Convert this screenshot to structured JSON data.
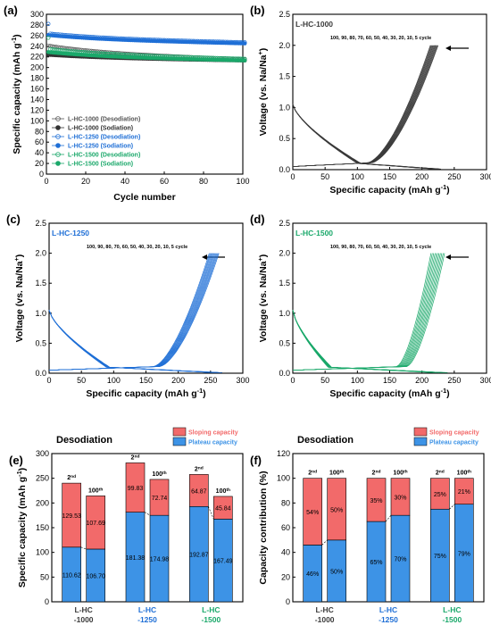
{
  "colors": {
    "lhc1000": "#3a3a3a",
    "lhc1250": "#1f6fd6",
    "lhc1500": "#1aa86a",
    "sloping": "#f26a6a",
    "plateau": "#3d93e6"
  },
  "charts": [
    {
      "panel": "(a)",
      "type": "scatter",
      "xlabel": "Cycle number",
      "ylabel": "Specific capacity (mAh g-1)",
      "xlim": [
        0,
        100
      ],
      "ylim": [
        0,
        300
      ],
      "xticks": [
        0,
        20,
        40,
        60,
        80,
        100
      ],
      "yticks": [
        0,
        20,
        40,
        60,
        80,
        100,
        120,
        140,
        160,
        180,
        200,
        220,
        240,
        260,
        280,
        300
      ],
      "series": [
        {
          "name": "L-HC-1000 (Desodiation)",
          "color": "#555555",
          "fill": "none",
          "start": 241,
          "end": 215,
          "first": 241
        },
        {
          "name": "L-HC-1000 (Sodiation)",
          "color": "#333333",
          "fill": "#333333",
          "start": 224,
          "end": 213,
          "first": 224
        },
        {
          "name": "L-HC-1250 (Desodiation)",
          "color": "#1f6fd6",
          "fill": "none",
          "start": 264,
          "end": 247,
          "first": 282
        },
        {
          "name": "L-HC-1250 (Sodiation)",
          "color": "#1f6fd6",
          "fill": "#1f6fd6",
          "start": 261,
          "end": 245,
          "first": 261
        },
        {
          "name": "L-HC-1500 (Desodiation)",
          "color": "#1aa86a",
          "fill": "none",
          "start": 235,
          "end": 216,
          "first": 256
        },
        {
          "name": "L-HC-1500 (Sodiation)",
          "color": "#1aa86a",
          "fill": "#1aa86a",
          "start": 229,
          "end": 213,
          "first": 229
        }
      ]
    },
    {
      "panel": "(b)",
      "type": "line",
      "sample": "L-HC-1000",
      "color": "#3a3a3a",
      "xlabel": "Specific capacity (mAh g-1)",
      "ylabel": "Voltage (vs. Na/Na+)",
      "xlim": [
        0,
        300
      ],
      "ylim": [
        0,
        2.5
      ],
      "xticks": [
        0,
        50,
        100,
        150,
        200,
        250,
        300
      ],
      "yticks": [
        0.0,
        0.5,
        1.0,
        1.5,
        2.0,
        2.5
      ],
      "cycles_note": "100, 90, 80, 70, 60, 50, 40, 30, 20, 10, 5 cycle",
      "cap_max": 225,
      "cap_min": 213,
      "slope_frac": 0.46
    },
    {
      "panel": "(c)",
      "type": "line",
      "sample": "L-HC-1250",
      "color": "#1f6fd6",
      "xlabel": "Specific capacity (mAh g-1)",
      "ylabel": "Voltage (vs. Na/Na+)",
      "xlim": [
        0,
        300
      ],
      "ylim": [
        0,
        2.5
      ],
      "xticks": [
        0,
        50,
        100,
        150,
        200,
        250,
        300
      ],
      "yticks": [
        0.0,
        0.5,
        1.0,
        1.5,
        2.0,
        2.5
      ],
      "cycles_note": "100, 90, 80, 70, 60, 50, 40, 30, 20, 10, 5 cycle",
      "cap_max": 263,
      "cap_min": 248,
      "slope_frac": 0.35
    },
    {
      "panel": "(d)",
      "type": "line",
      "sample": "L-HC-1500",
      "color": "#1aa86a",
      "xlabel": "Specific capacity (mAh g-1)",
      "ylabel": "Voltage (vs. Na/Na+)",
      "xlim": [
        0,
        300
      ],
      "ylim": [
        0,
        2.5
      ],
      "xticks": [
        0,
        50,
        100,
        150,
        200,
        250,
        300
      ],
      "yticks": [
        0.0,
        0.5,
        1.0,
        1.5,
        2.0,
        2.5
      ],
      "cycles_note": "100, 90, 80, 70, 60, 50, 40, 30, 20, 10, 5 cycle",
      "cap_max": 235,
      "cap_min": 214,
      "slope_frac": 0.25
    },
    {
      "panel": "(e)",
      "type": "bar",
      "title": "Desodiation",
      "ylabel": "Specific capacity (mAh g-1)",
      "ylim": [
        0,
        300
      ],
      "yticks": [
        0,
        50,
        100,
        150,
        200,
        250,
        300
      ],
      "legend": [
        "Sloping capacity",
        "Plateau capacity"
      ],
      "groups": [
        {
          "label": [
            "L-HC",
            "-1000"
          ],
          "color": "#3a3a3a",
          "bars": [
            {
              "cycle": "2",
              "sup": "nd",
              "plateau": 110.62,
              "sloping": 129.53,
              "plateau_label": "110.62",
              "sloping_label": "129.53"
            },
            {
              "cycle": "100",
              "sup": "th",
              "plateau": 106.7,
              "sloping": 107.69,
              "plateau_label": "106.70",
              "sloping_label": "107.69"
            }
          ]
        },
        {
          "label": [
            "L-HC",
            "-1250"
          ],
          "color": "#1f6fd6",
          "bars": [
            {
              "cycle": "2",
              "sup": "nd",
              "plateau": 181.38,
              "sloping": 99.83,
              "plateau_label": "181.38",
              "sloping_label": "99.83"
            },
            {
              "cycle": "100",
              "sup": "th",
              "plateau": 174.98,
              "sloping": 72.74,
              "plateau_label": "174.98",
              "sloping_label": "72.74"
            }
          ]
        },
        {
          "label": [
            "L-HC",
            "-1500"
          ],
          "color": "#1aa86a",
          "bars": [
            {
              "cycle": "2",
              "sup": "nd",
              "plateau": 192.87,
              "sloping": 64.87,
              "plateau_label": "192.87",
              "sloping_label": "64.87"
            },
            {
              "cycle": "100",
              "sup": "th",
              "plateau": 167.49,
              "sloping": 45.84,
              "plateau_label": "167.49",
              "sloping_label": "45.84"
            }
          ]
        }
      ]
    },
    {
      "panel": "(f)",
      "type": "bar",
      "title": "Desodiation",
      "ylabel": "Capacity contribution (%)",
      "ylim": [
        0,
        120
      ],
      "yticks": [
        0,
        20,
        40,
        60,
        80,
        100,
        120
      ],
      "legend": [
        "Sloping capacity",
        "Plateau capacity"
      ],
      "groups": [
        {
          "label": [
            "L-HC",
            "-1000"
          ],
          "color": "#3a3a3a",
          "bars": [
            {
              "cycle": "2",
              "sup": "nd",
              "plateau": 46,
              "sloping": 54,
              "plateau_label": "46%",
              "sloping_label": "54%"
            },
            {
              "cycle": "100",
              "sup": "th",
              "plateau": 50,
              "sloping": 50,
              "plateau_label": "50%",
              "sloping_label": "50%"
            }
          ]
        },
        {
          "label": [
            "L-HC",
            "-1250"
          ],
          "color": "#1f6fd6",
          "bars": [
            {
              "cycle": "2",
              "sup": "nd",
              "plateau": 65,
              "sloping": 35,
              "plateau_label": "65%",
              "sloping_label": "35%"
            },
            {
              "cycle": "100",
              "sup": "th",
              "plateau": 70,
              "sloping": 30,
              "plateau_label": "70%",
              "sloping_label": "30%"
            }
          ]
        },
        {
          "label": [
            "L-HC",
            "-1500"
          ],
          "color": "#1aa86a",
          "bars": [
            {
              "cycle": "2",
              "sup": "nd",
              "plateau": 75,
              "sloping": 25,
              "plateau_label": "75%",
              "sloping_label": "25%"
            },
            {
              "cycle": "100",
              "sup": "th",
              "plateau": 79,
              "sloping": 21,
              "plateau_label": "79%",
              "sloping_label": "21%"
            }
          ]
        }
      ]
    }
  ]
}
